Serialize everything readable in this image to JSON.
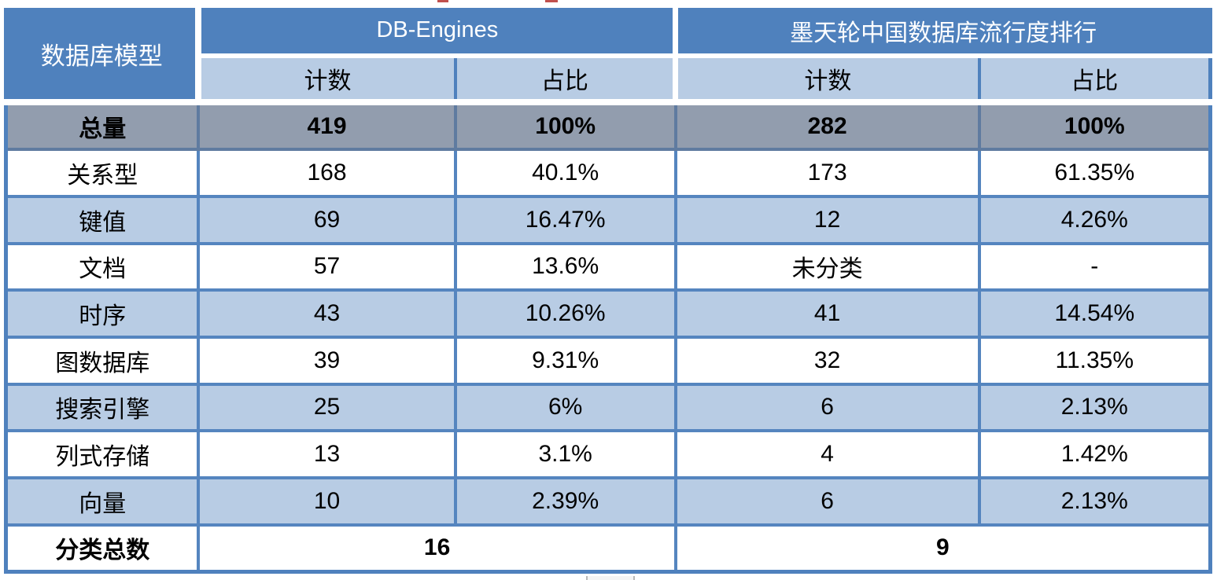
{
  "chart_data": {
    "type": "table",
    "corner_header": "数据库模型",
    "column_groups": [
      {
        "label": "DB-Engines",
        "columns": [
          "计数",
          "占比"
        ]
      },
      {
        "label": "墨天轮中国数据库流行度排行",
        "columns": [
          "计数",
          "占比"
        ]
      }
    ],
    "sub_headers": [
      "计数",
      "占比",
      "计数",
      "占比"
    ],
    "rows": [
      {
        "label": "总量",
        "values": [
          "419",
          "100%",
          "282",
          "100%"
        ]
      },
      {
        "label": "关系型",
        "values": [
          "168",
          "40.1%",
          "173",
          "61.35%"
        ]
      },
      {
        "label": "键值",
        "values": [
          "69",
          "16.47%",
          "12",
          "4.26%"
        ]
      },
      {
        "label": "文档",
        "values": [
          "57",
          "13.6%",
          "未分类",
          "-"
        ]
      },
      {
        "label": "时序",
        "values": [
          "43",
          "10.26%",
          "41",
          "14.54%"
        ]
      },
      {
        "label": "图数据库",
        "values": [
          "39",
          "9.31%",
          "32",
          "11.35%"
        ]
      },
      {
        "label": "搜索引擎",
        "values": [
          "25",
          "6%",
          "6",
          "2.13%"
        ]
      },
      {
        "label": "列式存储",
        "values": [
          "13",
          "3.1%",
          "4",
          "1.42%"
        ]
      },
      {
        "label": "向量",
        "values": [
          "10",
          "2.39%",
          "6",
          "2.13%"
        ]
      }
    ],
    "footer": {
      "label": "分类总数",
      "values": [
        "16",
        "9"
      ]
    }
  },
  "colors": {
    "header_blue": "#4f81bd",
    "subheader_light_blue": "#b8cce4",
    "band_light_blue": "#b8cce4",
    "total_row_gray": "#929dae",
    "grid_border_blue": "#5585bf",
    "text_black": "#000000",
    "header_text_white": "#ffffff"
  }
}
